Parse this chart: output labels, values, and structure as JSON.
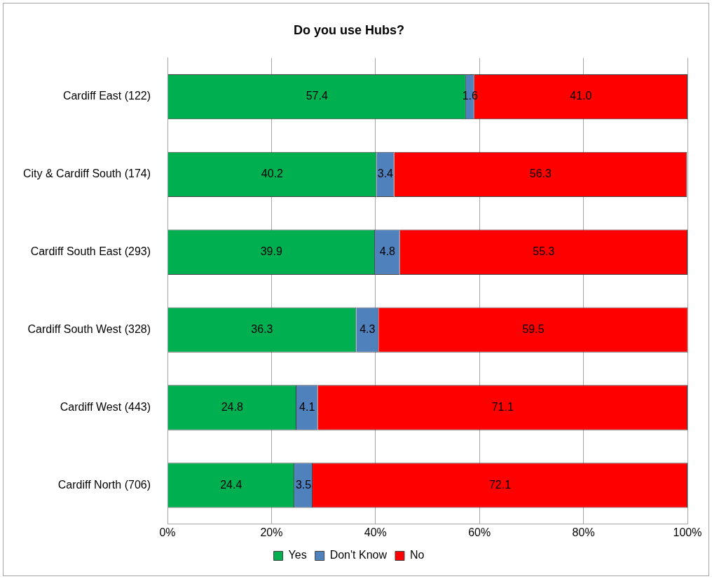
{
  "chart_data": {
    "type": "bar",
    "orientation": "horizontal",
    "stacked": true,
    "title": "Do you use Hubs?",
    "categories": [
      "Cardiff East (122)",
      "City & Cardiff South (174)",
      "Cardiff South East (293)",
      "Cardiff South West (328)",
      "Cardiff West (443)",
      "Cardiff North (706)"
    ],
    "series": [
      {
        "name": "Yes",
        "color": "#00b050",
        "values": [
          57.4,
          40.2,
          39.9,
          36.3,
          24.8,
          24.4
        ],
        "value_labels": [
          "57.4",
          "40.2",
          "39.9",
          "36.3",
          "24.8",
          "24.4"
        ]
      },
      {
        "name": "Don't Know",
        "color": "#4f81bd",
        "values": [
          1.6,
          3.4,
          4.8,
          4.3,
          4.1,
          3.5
        ],
        "value_labels": [
          "1.6",
          "3.4",
          "4.8",
          "4.3",
          "4.1",
          "3.5"
        ]
      },
      {
        "name": "No",
        "color": "#ff0000",
        "values": [
          41.0,
          56.3,
          55.3,
          59.5,
          71.1,
          72.1
        ],
        "value_labels": [
          "41.0",
          "56.3",
          "55.3",
          "59.5",
          "71.1",
          "72.1"
        ]
      }
    ],
    "xlim": [
      0,
      100
    ],
    "xticks": [
      {
        "value": 0,
        "label": "0%"
      },
      {
        "value": 20,
        "label": "20%"
      },
      {
        "value": 40,
        "label": "40%"
      },
      {
        "value": 60,
        "label": "60%"
      },
      {
        "value": 80,
        "label": "80%"
      },
      {
        "value": 100,
        "label": "100%"
      }
    ],
    "grid": "x",
    "legend": "bottom"
  }
}
